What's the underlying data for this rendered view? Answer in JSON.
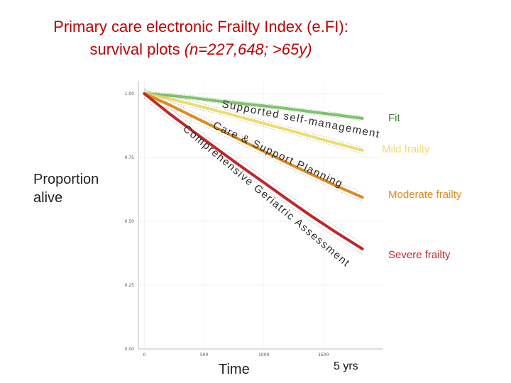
{
  "title": {
    "line1": "Primary care electronic Frailty Index (e.FI):",
    "line2_plain": "survival plots ",
    "line2_italic": "(n=227,648;  >65y)"
  },
  "ylabel_lines": [
    "Proportion",
    "alive"
  ],
  "xlabel": "Time",
  "x_annotation": "5 yrs",
  "overlay_text": [
    "Supported self-management",
    "Care & Support Planning",
    "Comprehensive Geriatric Assessment"
  ],
  "colors": {
    "fit": "#7dc36b",
    "mild": "#ecdd6c",
    "moderate": "#e08a1c",
    "severe": "#c0262a",
    "title": "#c00000"
  },
  "chart_data": {
    "type": "line",
    "xlim": [
      -50,
      2000
    ],
    "ylim": [
      0,
      1.05
    ],
    "xticks": [
      0,
      500,
      1000,
      1500
    ],
    "yticks": [
      0.0,
      0.25,
      0.5,
      0.75,
      1.0
    ],
    "ytick_labels": [
      "0.00",
      "0.25",
      "0.50",
      "0.75",
      "1.00"
    ],
    "legend_placement": "right",
    "series": [
      {
        "name": "Fit",
        "color": "#7dc36b",
        "x": [
          0,
          200,
          400,
          600,
          800,
          1000,
          1200,
          1400,
          1600,
          1826
        ],
        "y": [
          1.0,
          0.993,
          0.984,
          0.972,
          0.962,
          0.952,
          0.941,
          0.929,
          0.917,
          0.903
        ]
      },
      {
        "name": "Mild frailty",
        "color": "#ecdd6c",
        "x": [
          0,
          200,
          400,
          600,
          800,
          1000,
          1200,
          1400,
          1600,
          1826
        ],
        "y": [
          1.0,
          0.981,
          0.958,
          0.934,
          0.909,
          0.883,
          0.858,
          0.832,
          0.806,
          0.778
        ]
      },
      {
        "name": "Moderate frailty",
        "color": "#e08a1c",
        "x": [
          0,
          200,
          400,
          600,
          800,
          1000,
          1200,
          1400,
          1600,
          1826
        ],
        "y": [
          1.0,
          0.958,
          0.912,
          0.866,
          0.82,
          0.774,
          0.728,
          0.684,
          0.64,
          0.594
        ]
      },
      {
        "name": "Severe frailty",
        "color": "#c0262a",
        "x": [
          0,
          200,
          400,
          600,
          800,
          1000,
          1200,
          1400,
          1600,
          1826
        ],
        "y": [
          1.0,
          0.925,
          0.855,
          0.786,
          0.718,
          0.652,
          0.585,
          0.52,
          0.458,
          0.392
        ]
      }
    ]
  }
}
